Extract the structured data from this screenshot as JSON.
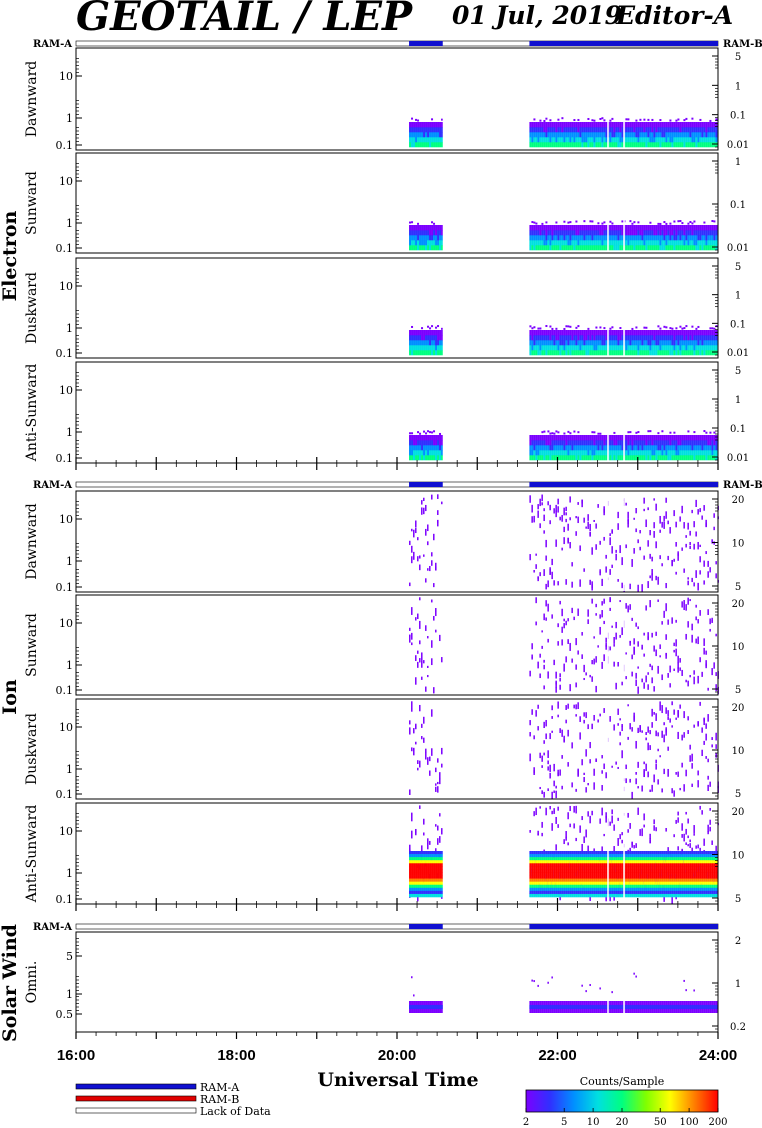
{
  "header": {
    "title": "GEOTAIL / LEP",
    "date": "01 Jul, 2019",
    "editor": "Editor-A"
  },
  "ram_labels": {
    "a": "RAM-A",
    "b": "RAM-B"
  },
  "colors": {
    "ram_a": "#1010d0",
    "ram_b": "#e00000",
    "background": "#ffffff",
    "colorscale": [
      "#7b00ff",
      "#3030ff",
      "#0090ff",
      "#00e0e0",
      "#00ff80",
      "#80ff00",
      "#ffff00",
      "#ff8000",
      "#ff0000"
    ]
  },
  "groups": [
    {
      "id": "electron",
      "label": "Electron"
    },
    {
      "id": "ion",
      "label": "Ion"
    },
    {
      "id": "sw",
      "label": "Solar Wind"
    }
  ],
  "panels": [
    {
      "group": "electron",
      "label": "Dawnward",
      "kind": "electron",
      "left_ticks": [
        "10",
        "1",
        "0.1"
      ],
      "right_ticks": [
        "5",
        "1",
        "0.1",
        "0.01"
      ]
    },
    {
      "group": "electron",
      "label": "Sunward",
      "kind": "electron",
      "left_ticks": [
        "10",
        "1",
        "0.1"
      ],
      "right_ticks": [
        "1",
        "0.1",
        "0.01"
      ]
    },
    {
      "group": "electron",
      "label": "Duskward",
      "kind": "electron",
      "left_ticks": [
        "10",
        "1",
        "0.1"
      ],
      "right_ticks": [
        "5",
        "1",
        "0.1",
        "0.01"
      ]
    },
    {
      "group": "electron",
      "label": "Anti-Sunward",
      "kind": "electron",
      "left_ticks": [
        "10",
        "1",
        "0.1"
      ],
      "right_ticks": [
        "5",
        "1",
        "0.1",
        "0.01"
      ]
    },
    {
      "group": "ion",
      "label": "Dawnward",
      "kind": "ion",
      "left_ticks": [
        "10",
        "1",
        "0.1"
      ],
      "right_ticks": [
        "20",
        "10",
        "5"
      ]
    },
    {
      "group": "ion",
      "label": "Sunward",
      "kind": "ion",
      "left_ticks": [
        "10",
        "1",
        "0.1"
      ],
      "right_ticks": [
        "20",
        "10",
        "5"
      ]
    },
    {
      "group": "ion",
      "label": "Duskward",
      "kind": "ion",
      "left_ticks": [
        "10",
        "1",
        "0.1"
      ],
      "right_ticks": [
        "20",
        "10",
        "5"
      ]
    },
    {
      "group": "ion",
      "label": "Anti-Sunward",
      "kind": "ion_anti",
      "left_ticks": [
        "10",
        "1",
        "0.1"
      ],
      "right_ticks": [
        "20",
        "10",
        "5"
      ]
    },
    {
      "group": "sw",
      "label": "Omni.",
      "kind": "sw",
      "left_ticks": [
        "5",
        "1",
        "0.5"
      ],
      "right_ticks": [
        "2",
        "1",
        "0.2"
      ]
    }
  ],
  "chart_data": {
    "type": "heatmap",
    "title": "GEOTAIL / LEP  01 Jul, 2019  Editor-A",
    "xlabel": "Universal Time",
    "x_ticks": [
      "16:00",
      "18:00",
      "20:00",
      "22:00",
      "24:00"
    ],
    "x_range_hours": [
      16,
      24
    ],
    "data_intervals_hours": [
      [
        20.15,
        20.57
      ],
      [
        21.65,
        24.0
      ]
    ],
    "ram_mode": "RAM-A",
    "colorbar": {
      "label": "Counts/Sample",
      "ticks": [
        "2",
        "5",
        "10",
        "20",
        "50",
        "100",
        "200"
      ],
      "range": [
        2,
        200
      ],
      "scale": "log"
    },
    "legend": [
      {
        "name": "RAM-A",
        "color": "#1010d0"
      },
      {
        "name": "RAM-B",
        "color": "#e00000"
      },
      {
        "name": "Lack of Data",
        "color": "#ffffff"
      }
    ]
  }
}
